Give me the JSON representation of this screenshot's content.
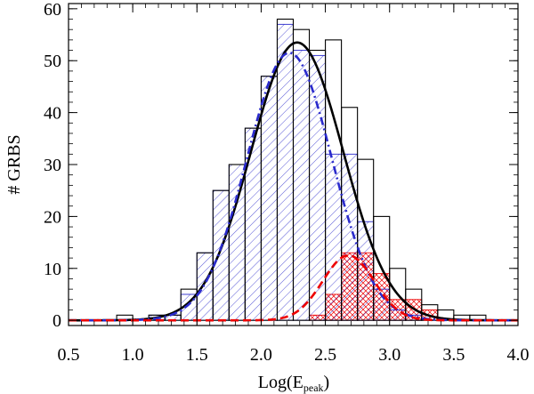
{
  "chart_data": {
    "type": "bar",
    "xlabel_main": "Log(E",
    "xlabel_sub": "peak",
    "xlabel_end": ")",
    "ylabel": "# GRBS",
    "xlim": [
      0.5,
      4.0
    ],
    "ylim": [
      -1,
      61
    ],
    "bin_width": 0.125,
    "xticks": [
      "0.5",
      "1.0",
      "1.5",
      "2.0",
      "2.5",
      "3.0",
      "3.5",
      "4.0"
    ],
    "yticks": [
      "0",
      "10",
      "20",
      "30",
      "40",
      "50",
      "60"
    ],
    "series": [
      {
        "style": "histogram-outline",
        "color": "#000000",
        "bin_starts": [
          0.875,
          1.0,
          1.125,
          1.25,
          1.375,
          1.5,
          1.625,
          1.75,
          1.875,
          2.0,
          2.125,
          2.25,
          2.375,
          2.5,
          2.625,
          2.75,
          2.875,
          3.0,
          3.125,
          3.25,
          3.375,
          3.5,
          3.625
        ],
        "values": [
          1,
          0,
          1,
          1,
          6,
          13,
          25,
          30,
          37,
          47,
          58,
          56,
          52,
          54,
          41,
          31,
          20,
          10,
          6,
          3,
          2,
          1,
          1
        ]
      },
      {
        "style": "hatched-diagonal",
        "color": "#2a2acc",
        "bin_starts": [
          1.0,
          1.125,
          1.25,
          1.375,
          1.5,
          1.625,
          1.75,
          1.875,
          2.0,
          2.125,
          2.25,
          2.375,
          2.5,
          2.625,
          2.75,
          2.875,
          3.0,
          3.125,
          3.25
        ],
        "values": [
          0,
          1,
          1,
          5,
          13,
          25,
          30,
          37,
          47,
          57,
          52,
          51,
          32,
          32,
          19,
          6,
          2,
          1,
          0
        ]
      },
      {
        "style": "hatched-cross",
        "color": "#ee0000",
        "bin_starts": [
          2.25,
          2.375,
          2.5,
          2.625,
          2.75,
          2.875,
          3.0,
          3.125,
          3.25,
          3.375
        ],
        "values": [
          0,
          1,
          5,
          13,
          13,
          9,
          4,
          4,
          2,
          0
        ]
      },
      {
        "style": "curve-solid",
        "color": "#000000",
        "gaussian": {
          "amplitude": 53.5,
          "mean": 2.28,
          "sigma": 0.36
        }
      },
      {
        "style": "curve-dashdot",
        "color": "#2a2acc",
        "gaussian": {
          "amplitude": 51.5,
          "mean": 2.22,
          "sigma": 0.33
        }
      },
      {
        "style": "curve-dashed",
        "color": "#ee0000",
        "gaussian": {
          "amplitude": 12.5,
          "mean": 2.68,
          "sigma": 0.2
        }
      }
    ]
  }
}
